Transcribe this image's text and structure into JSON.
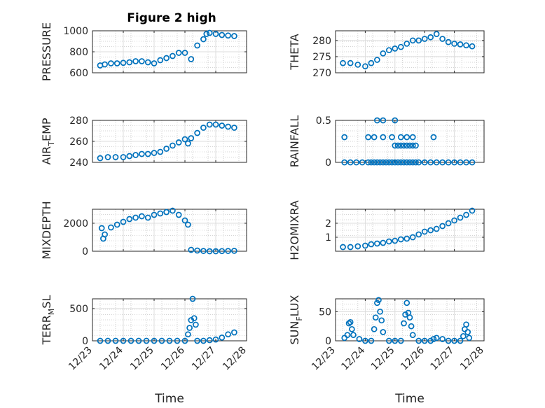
{
  "figure": {
    "title": "Figure 2 high"
  },
  "chart_data": [
    {
      "type": "scatter",
      "title": "Figure 2 high",
      "xlabel": "",
      "ylabel": "PRESSURE",
      "ylim": [
        600,
        1000
      ],
      "yticks": [
        600,
        800,
        1000
      ],
      "xlim": [
        0,
        5
      ],
      "x": [
        0.25,
        0.4,
        0.6,
        0.8,
        1.0,
        1.2,
        1.4,
        1.6,
        1.8,
        2.0,
        2.2,
        2.4,
        2.6,
        2.8,
        3.0,
        3.2,
        3.4,
        3.6,
        3.7,
        3.8,
        4.0,
        4.2,
        4.4,
        4.6
      ],
      "y": [
        670,
        680,
        690,
        690,
        695,
        700,
        710,
        710,
        700,
        690,
        720,
        740,
        760,
        790,
        790,
        730,
        860,
        920,
        970,
        980,
        970,
        960,
        955,
        950
      ]
    },
    {
      "type": "scatter",
      "xlabel": "",
      "ylabel": "THETA",
      "ylim": [
        270,
        283
      ],
      "yticks": [
        270,
        275,
        280
      ],
      "xlim": [
        0,
        5
      ],
      "x": [
        0.25,
        0.5,
        0.75,
        1.0,
        1.2,
        1.4,
        1.6,
        1.8,
        2.0,
        2.2,
        2.4,
        2.6,
        2.8,
        3.0,
        3.2,
        3.4,
        3.6,
        3.8,
        4.0,
        4.2,
        4.4,
        4.6
      ],
      "y": [
        273,
        273,
        272.5,
        272,
        273,
        274,
        276,
        277,
        277.5,
        278,
        279,
        280,
        280,
        280.5,
        281,
        282,
        280.5,
        279.5,
        279,
        278.8,
        278.5,
        278.2
      ]
    },
    {
      "type": "scatter",
      "xlabel": "",
      "ylabel": "AIR_TEMP",
      "ylim": [
        240,
        280
      ],
      "yticks": [
        240,
        260,
        280
      ],
      "xlim": [
        0,
        5
      ],
      "x": [
        0.25,
        0.5,
        0.75,
        1.0,
        1.2,
        1.4,
        1.6,
        1.8,
        2.0,
        2.2,
        2.4,
        2.6,
        2.8,
        3.0,
        3.1,
        3.2,
        3.4,
        3.6,
        3.8,
        4.0,
        4.2,
        4.4,
        4.6
      ],
      "y": [
        244,
        245,
        245,
        245,
        246,
        247,
        248,
        248,
        249,
        250,
        253,
        256,
        259,
        262,
        258,
        263,
        268,
        273,
        276,
        276,
        275,
        274,
        273
      ]
    },
    {
      "type": "scatter",
      "xlabel": "",
      "ylabel": "RAINFALL",
      "ylim": [
        0,
        0.5
      ],
      "yticks": [
        0,
        0.5
      ],
      "xlim": [
        0,
        5
      ],
      "x": [
        0.3,
        0.5,
        0.7,
        0.9,
        1.1,
        1.2,
        1.3,
        1.4,
        1.5,
        1.6,
        1.7,
        1.8,
        1.9,
        2.0,
        2.1,
        2.2,
        2.3,
        2.4,
        2.5,
        2.6,
        2.7,
        2.8,
        3.0,
        3.2,
        3.4,
        3.6,
        3.8,
        4.0,
        4.2,
        4.4,
        4.6,
        0.3,
        1.1,
        1.3,
        1.6,
        1.9,
        2.2,
        2.4,
        2.6,
        2.0,
        2.1,
        2.3,
        2.5,
        2.6,
        2.7,
        1.4,
        1.6,
        2.0,
        2.2,
        2.4,
        3.3
      ],
      "y": [
        0,
        0,
        0,
        0,
        0,
        0,
        0,
        0,
        0,
        0,
        0,
        0,
        0,
        0,
        0,
        0,
        0,
        0,
        0,
        0,
        0,
        0,
        0,
        0,
        0,
        0,
        0,
        0,
        0,
        0,
        0,
        0.3,
        0.3,
        0.3,
        0.3,
        0.3,
        0.3,
        0.3,
        0.3,
        0.2,
        0.2,
        0.2,
        0.2,
        0.2,
        0.2,
        0.5,
        0.5,
        0.5,
        0.2,
        0.2,
        0.3
      ]
    },
    {
      "type": "scatter",
      "xlabel": "",
      "ylabel": "MIXDEPTH",
      "ylim": [
        0,
        3000
      ],
      "yticks": [
        0,
        2000
      ],
      "xlim": [
        0,
        5
      ],
      "x": [
        0.3,
        0.35,
        0.4,
        0.6,
        0.8,
        1.0,
        1.2,
        1.4,
        1.6,
        1.8,
        2.0,
        2.2,
        2.4,
        2.6,
        2.8,
        3.0,
        3.1,
        3.2,
        3.4,
        3.6,
        3.8,
        4.0,
        4.2,
        4.4,
        4.6
      ],
      "y": [
        1650,
        900,
        1200,
        1700,
        1900,
        2100,
        2300,
        2400,
        2500,
        2400,
        2600,
        2700,
        2800,
        2900,
        2600,
        2200,
        1900,
        100,
        50,
        20,
        0,
        0,
        10,
        20,
        30
      ]
    },
    {
      "type": "scatter",
      "xlabel": "",
      "ylabel": "H2OMIXRA",
      "ylim": [
        0,
        3
      ],
      "yticks": [
        1,
        2
      ],
      "xlim": [
        0,
        5
      ],
      "x": [
        0.25,
        0.5,
        0.75,
        1.0,
        1.2,
        1.4,
        1.6,
        1.8,
        2.0,
        2.2,
        2.4,
        2.6,
        2.8,
        3.0,
        3.2,
        3.4,
        3.6,
        3.8,
        4.0,
        4.2,
        4.4,
        4.6
      ],
      "y": [
        0.3,
        0.3,
        0.35,
        0.4,
        0.5,
        0.55,
        0.6,
        0.7,
        0.75,
        0.85,
        0.9,
        1.0,
        1.2,
        1.4,
        1.5,
        1.6,
        1.8,
        2.0,
        2.2,
        2.4,
        2.6,
        2.9
      ]
    },
    {
      "type": "scatter",
      "xlabel": "Time",
      "ylabel": "TERR_MSL",
      "ylim": [
        0,
        650
      ],
      "yticks": [
        0,
        500
      ],
      "xlim": [
        0,
        5
      ],
      "xticks": [
        "12/23",
        "12/24",
        "12/25",
        "12/26",
        "12/27",
        "12/28"
      ],
      "x": [
        0.25,
        0.5,
        0.75,
        1.0,
        1.25,
        1.5,
        1.75,
        2.0,
        2.25,
        2.5,
        2.75,
        3.0,
        3.1,
        3.15,
        3.2,
        3.25,
        3.3,
        3.35,
        3.4,
        3.6,
        3.8,
        4.0,
        4.2,
        4.4,
        4.6
      ],
      "y": [
        0,
        0,
        0,
        0,
        0,
        0,
        0,
        0,
        0,
        0,
        0,
        0,
        100,
        200,
        320,
        650,
        350,
        250,
        0,
        0,
        10,
        20,
        50,
        100,
        130
      ]
    },
    {
      "type": "scatter",
      "xlabel": "Time",
      "ylabel": "SUN_FLUX",
      "ylim": [
        0,
        72
      ],
      "yticks": [
        0,
        50
      ],
      "xlim": [
        0,
        5
      ],
      "xticks": [
        "12/23",
        "12/24",
        "12/25",
        "12/26",
        "12/27",
        "12/28"
      ],
      "x": [
        0.3,
        0.4,
        0.45,
        0.5,
        0.55,
        0.6,
        0.8,
        1.0,
        1.2,
        1.3,
        1.35,
        1.4,
        1.45,
        1.5,
        1.55,
        1.6,
        1.8,
        2.0,
        2.2,
        2.3,
        2.35,
        2.4,
        2.45,
        2.5,
        2.55,
        2.6,
        2.8,
        3.0,
        3.2,
        3.3,
        3.4,
        3.6,
        3.8,
        4.0,
        4.2,
        4.3,
        4.35,
        4.4,
        4.45,
        4.5
      ],
      "y": [
        5,
        10,
        30,
        32,
        20,
        10,
        3,
        0,
        0,
        20,
        40,
        65,
        70,
        50,
        35,
        15,
        0,
        0,
        0,
        30,
        45,
        65,
        48,
        40,
        25,
        10,
        0,
        0,
        0,
        3,
        5,
        3,
        0,
        0,
        0,
        8,
        20,
        28,
        15,
        5
      ]
    }
  ]
}
